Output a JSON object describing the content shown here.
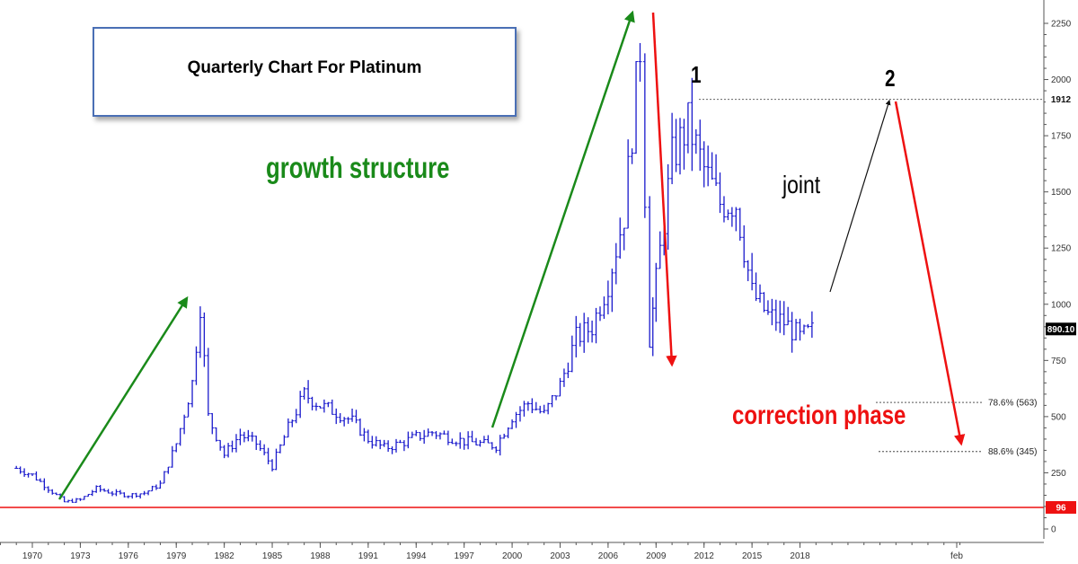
{
  "title": "Quarterly Chart For Platinum",
  "annotations": {
    "growth": "growth structure",
    "correction": "correction phase",
    "joint": "joint",
    "wave1": "1",
    "wave2": "2"
  },
  "fib_levels": [
    {
      "label": "78.6%  (563)",
      "value": 563
    },
    {
      "label": "88.6%  (345)",
      "value": 345
    }
  ],
  "current_price_label": "890.10",
  "support_label": "96",
  "resistance_label": "1912",
  "colors": {
    "bars": "#1a1acc",
    "growth_arrows": "#1a8a1a",
    "correction_arrows": "#ee1111",
    "support_line": "#ee1111",
    "label_bg": "#000000"
  },
  "chart_data": {
    "type": "ohlc",
    "title": "Quarterly Chart For Platinum",
    "xlabel": "",
    "ylabel": "",
    "x_ticks": [
      "1970",
      "1973",
      "1976",
      "1979",
      "1982",
      "1985",
      "1988",
      "1991",
      "1994",
      "1997",
      "2000",
      "2003",
      "2006",
      "2009",
      "2012",
      "2015",
      "2018",
      "feb"
    ],
    "y_ticks": [
      0,
      250,
      500,
      750,
      1000,
      1250,
      1500,
      1750,
      2000,
      2250
    ],
    "ylim": [
      -30,
      2300
    ],
    "grid": false,
    "series": [
      {
        "values": [
          [
            1969,
            270
          ],
          [
            1970,
            240
          ],
          [
            1971,
            180
          ],
          [
            1972,
            120
          ],
          [
            1973,
            130
          ],
          [
            1974,
            180
          ],
          [
            1975,
            160
          ],
          [
            1976,
            150
          ],
          [
            1977,
            160
          ],
          [
            1978,
            200
          ],
          [
            1979,
            380
          ],
          [
            1980,
            650
          ],
          [
            1980.5,
            1000
          ],
          [
            1981,
            500
          ],
          [
            1982,
            330
          ],
          [
            1983,
            420
          ],
          [
            1984,
            380
          ],
          [
            1985,
            280
          ],
          [
            1986,
            450
          ],
          [
            1987,
            600
          ],
          [
            1988,
            550
          ],
          [
            1989,
            520
          ],
          [
            1990,
            480
          ],
          [
            1991,
            400
          ],
          [
            1992,
            360
          ],
          [
            1993,
            380
          ],
          [
            1994,
            410
          ],
          [
            1995,
            430
          ],
          [
            1996,
            410
          ],
          [
            1997,
            390
          ],
          [
            1998,
            380
          ],
          [
            1999,
            370
          ],
          [
            2000,
            500
          ],
          [
            2001,
            560
          ],
          [
            2002,
            510
          ],
          [
            2003,
            640
          ],
          [
            2004,
            850
          ],
          [
            2005,
            900
          ],
          [
            2006,
            1100
          ],
          [
            2007,
            1400
          ],
          [
            2008,
            2150
          ],
          [
            2008.6,
            850
          ],
          [
            2009,
            1100
          ],
          [
            2010,
            1650
          ],
          [
            2011,
            1800
          ],
          [
            2012,
            1600
          ],
          [
            2013,
            1450
          ],
          [
            2014,
            1450
          ],
          [
            2015,
            1050
          ],
          [
            2016,
            950
          ],
          [
            2017,
            920
          ],
          [
            2018,
            850
          ],
          [
            2019,
            890
          ]
        ]
      }
    ],
    "horizontal_lines": [
      {
        "label": "96",
        "value": 96
      },
      {
        "label": "1912",
        "value": 1912
      }
    ]
  }
}
